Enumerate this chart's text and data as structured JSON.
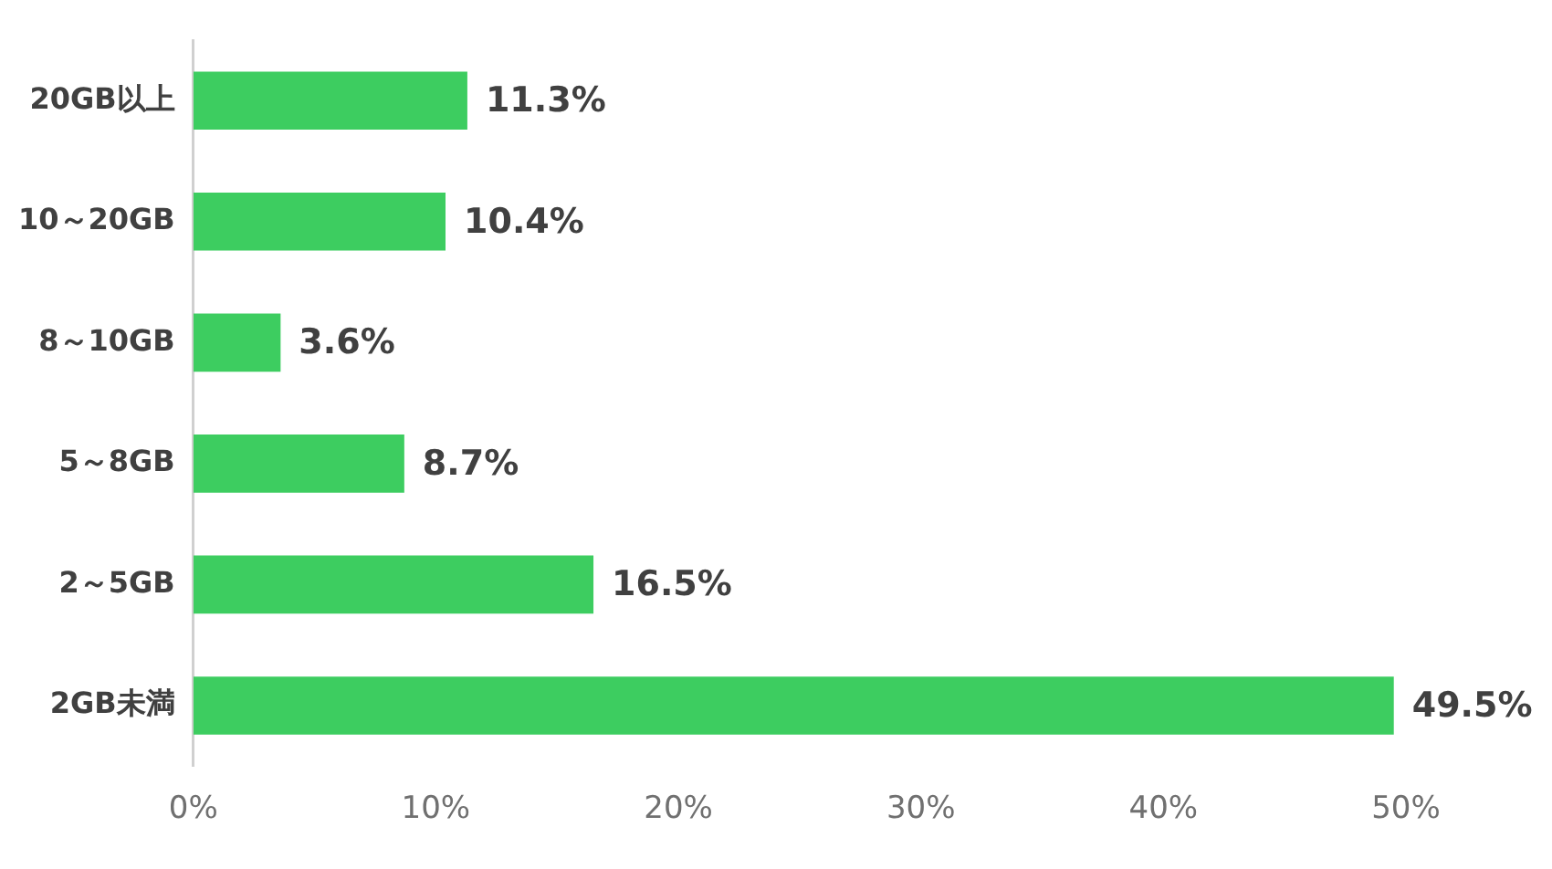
{
  "chart_data": {
    "type": "bar",
    "orientation": "horizontal",
    "categories": [
      "20GB以上",
      "10～20GB",
      "8～10GB",
      "5～8GB",
      "2～5GB",
      "2GB未満"
    ],
    "values": [
      11.3,
      10.4,
      3.6,
      8.7,
      16.5,
      49.5
    ],
    "value_labels": [
      "11.3%",
      "10.4%",
      "3.6%",
      "8.7%",
      "16.5%",
      "49.5%"
    ],
    "color": "#3dcd60",
    "xlim": [
      0,
      50
    ],
    "xticks": [
      {
        "value": 0,
        "label": "0%"
      },
      {
        "value": 10,
        "label": "10%"
      },
      {
        "value": 20,
        "label": "20%"
      },
      {
        "value": 30,
        "label": "30%"
      },
      {
        "value": 40,
        "label": "40%"
      },
      {
        "value": 50,
        "label": "50%"
      }
    ],
    "grid": false,
    "legend": false
  }
}
